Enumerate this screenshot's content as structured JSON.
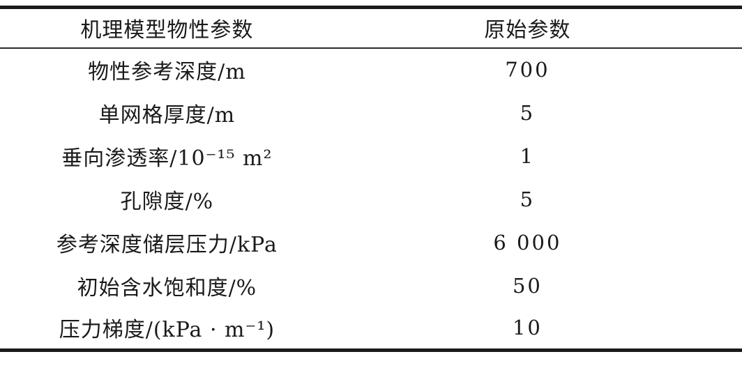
{
  "colors": {
    "text": "#1a1a1a",
    "rule": "#1a1a1a",
    "background": "#ffffff"
  },
  "table": {
    "columns": [
      "机理模型物性参数",
      "原始参数"
    ],
    "rows": [
      {
        "label": "物性参考深度/m",
        "value": "700"
      },
      {
        "label": "单网格厚度/m",
        "value": "5"
      },
      {
        "label": "垂向渗透率/10⁻¹⁵ m²",
        "value": "1"
      },
      {
        "label": "孔隙度/%",
        "value": "5"
      },
      {
        "label": "参考深度储层压力/kPa",
        "value": "6 000"
      },
      {
        "label": "初始含水饱和度/%",
        "value": "50"
      },
      {
        "label": "压力梯度/(kPa · m⁻¹)",
        "value": "10"
      }
    ]
  }
}
